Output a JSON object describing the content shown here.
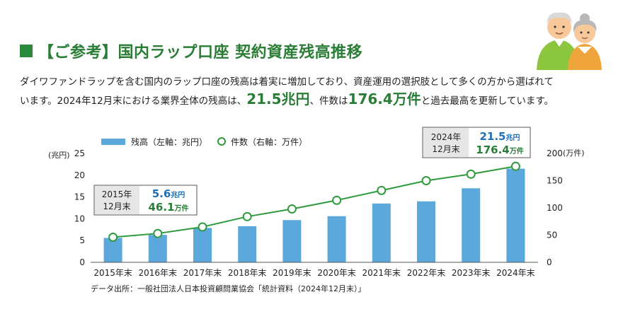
{
  "header": {
    "title": "【ご参考】国内ラップ口座 契約資産残高推移"
  },
  "description": {
    "line1": "ダイワファンドラップを含む国内のラップ口座の残高は着実に増加しており、資産運用の選択肢として多くの方から選ばれて",
    "line2_a": "います。2024年12月末における業界全体の残高は、",
    "hl_balance": "21.5兆円",
    "line2_b": "、件数は",
    "hl_count": "176.4万件",
    "line2_c": "と過去最高を更新しています。"
  },
  "source": "データ出所：一般社団法人日本投資顧問業協会「統計資料（2024年12月末）」",
  "colors": {
    "bar": "#5ba9dc",
    "line": "#2e9a3e",
    "accent_green": "#2a7d36",
    "accent_blue": "#1f6fb5"
  },
  "chart_data": {
    "type": "bar",
    "categories": [
      "2015年末",
      "2016年末",
      "2017年末",
      "2018年末",
      "2019年末",
      "2020年末",
      "2021年末",
      "2022年末",
      "2023年末",
      "2024年末"
    ],
    "series": [
      {
        "name": "残高（左軸：兆円）",
        "type": "bar",
        "axis": "left",
        "values": [
          5.6,
          6.3,
          7.9,
          8.3,
          9.7,
          10.6,
          13.5,
          14.0,
          17.0,
          21.5
        ]
      },
      {
        "name": "件数（右軸：万件）",
        "type": "line",
        "axis": "right",
        "values": [
          46.1,
          53.0,
          65.0,
          84.0,
          98.0,
          114.0,
          132.0,
          150.0,
          162.0,
          176.4
        ]
      }
    ],
    "left_axis": {
      "unit": "(兆円)",
      "ylim": [
        0,
        25
      ],
      "ticks": [
        "0",
        "5",
        "10",
        "15",
        "20",
        "25"
      ]
    },
    "right_axis": {
      "unit": "(万件)",
      "ylim": [
        0,
        200
      ],
      "ticks": [
        "0",
        "50",
        "100",
        "150",
        "200"
      ]
    },
    "legend": "top-left",
    "grid": false,
    "annotations": [
      {
        "year": "2015年",
        "period": "12月末",
        "balance": "5.6",
        "balance_unit": "兆円",
        "count": "46.1",
        "count_unit": "万件"
      },
      {
        "year": "2024年",
        "period": "12月末",
        "balance": "21.5",
        "balance_unit": "兆円",
        "count": "176.4",
        "count_unit": "万件"
      }
    ]
  }
}
